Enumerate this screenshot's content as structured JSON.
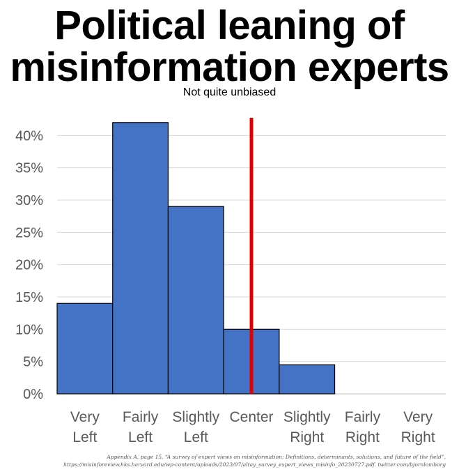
{
  "chart_data": {
    "type": "bar",
    "title_lines": [
      "Political leaning of",
      "misinformation experts"
    ],
    "subtitle": "Not quite unbiased",
    "categories": [
      [
        "Very",
        "Left"
      ],
      [
        "Fairly",
        "Left"
      ],
      [
        "Slightly",
        "Left"
      ],
      [
        "Center",
        ""
      ],
      [
        "Slightly",
        "Right"
      ],
      [
        "Fairly",
        "Right"
      ],
      [
        "Very",
        "Right"
      ]
    ],
    "values": [
      14,
      42,
      29,
      10,
      4.5,
      0,
      0
    ],
    "ylim": [
      0,
      45
    ],
    "yticks": [
      0,
      5,
      10,
      15,
      20,
      25,
      30,
      35,
      40
    ],
    "ytick_format": "%",
    "grid": true,
    "bar_color": "#4472C4",
    "marker_line": {
      "position": "Center",
      "color": "#E00000"
    }
  },
  "source": {
    "line1": "Appendix A, page 15, “A survey of expert views on misinformation: Definitions, determinants, solutions, and future of the field”,",
    "line2": "https://misinforeview.hks.harvard.edu/wp-content/uploads/2023/07/altay_survey_expert_views_misinfo_20230727.pdf. twitter.com/bjornlomborg"
  }
}
